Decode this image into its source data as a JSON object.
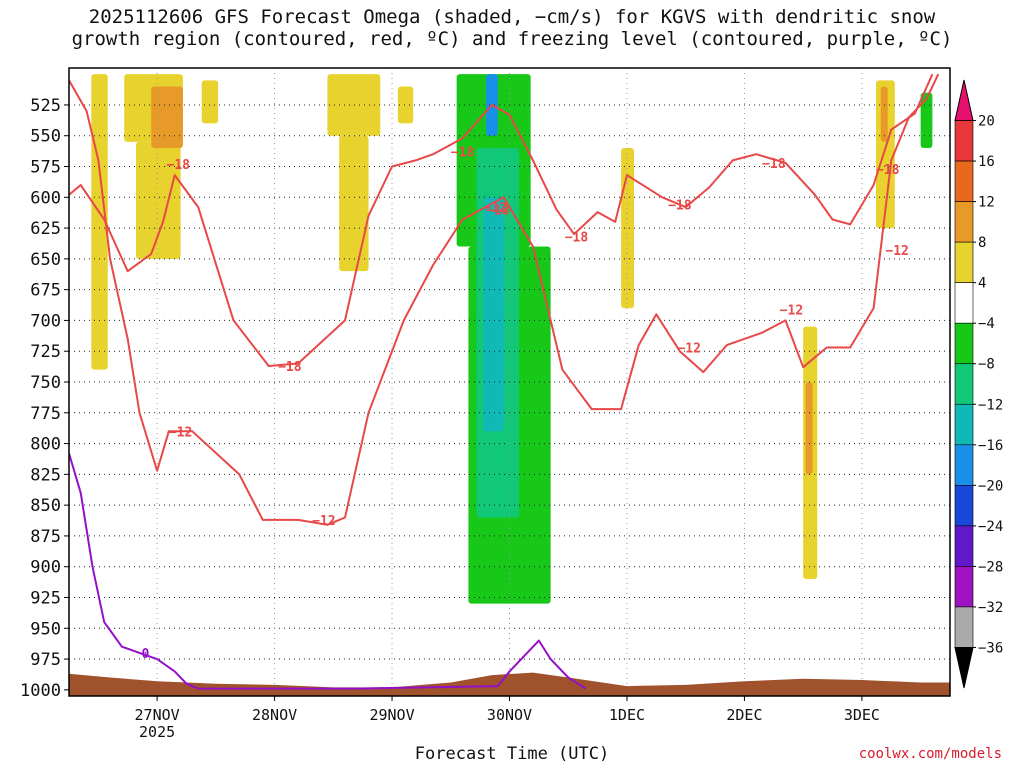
{
  "title": {
    "line1": "2025112606 GFS Forecast Omega (shaded, −cm/s) for KGVS with dendritic snow",
    "line2": "growth region (contoured, red, ºC) and freezing level (contoured, purple, ºC)"
  },
  "xlabel": "Forecast Time (UTC)",
  "credit": "coolwx.com/models",
  "chart_data": {
    "type": "heatmap",
    "x_axis": {
      "range": [
        26.25,
        33.75
      ],
      "ticks": [
        {
          "value": 27,
          "label": "27NOV",
          "sublabel": "2025"
        },
        {
          "value": 28,
          "label": "28NOV",
          "sublabel": ""
        },
        {
          "value": 29,
          "label": "29NOV",
          "sublabel": ""
        },
        {
          "value": 30,
          "label": "30NOV",
          "sublabel": ""
        },
        {
          "value": 31,
          "label": "1DEC",
          "sublabel": ""
        },
        {
          "value": 32,
          "label": "2DEC",
          "sublabel": ""
        },
        {
          "value": 33,
          "label": "3DEC",
          "sublabel": ""
        }
      ]
    },
    "y_axis": {
      "range": [
        1005,
        495
      ],
      "ticks": [
        525,
        550,
        575,
        600,
        625,
        650,
        675,
        700,
        725,
        750,
        775,
        800,
        825,
        850,
        875,
        900,
        925,
        950,
        975,
        1000
      ]
    },
    "grid": "dotted",
    "colorbar": {
      "labels": [
        "20",
        "16",
        "12",
        "8",
        "4",
        "−4",
        "−8",
        "−12",
        "−16",
        "−20",
        "−24",
        "−28",
        "−32",
        "−36"
      ],
      "colors": [
        "#e8106e",
        "#e8373a",
        "#e8691e",
        "#e89a28",
        "#e8d22e",
        "#ffffff",
        "#18c818",
        "#10c878",
        "#10b8b8",
        "#1890e8",
        "#1848d8",
        "#6018c8",
        "#9e12c2",
        "#aaaaaa",
        "#000000"
      ]
    },
    "shaded_regions": [
      {
        "color": "#e8d22e",
        "x": [
          26.44,
          26.58
        ],
        "p": [
          500,
          740
        ]
      },
      {
        "color": "#e8d22e",
        "x": [
          26.72,
          27.22
        ],
        "p": [
          500,
          555
        ]
      },
      {
        "color": "#e8d22e",
        "x": [
          26.82,
          27.2
        ],
        "p": [
          555,
          650
        ]
      },
      {
        "color": "#e89a28",
        "x": [
          26.95,
          27.22
        ],
        "p": [
          510,
          560
        ]
      },
      {
        "color": "#e8d22e",
        "x": [
          27.38,
          27.52
        ],
        "p": [
          505,
          540
        ]
      },
      {
        "color": "#e8d22e",
        "x": [
          28.45,
          28.9
        ],
        "p": [
          500,
          550
        ]
      },
      {
        "color": "#e8d22e",
        "x": [
          28.55,
          28.8
        ],
        "p": [
          550,
          660
        ]
      },
      {
        "color": "#e8d22e",
        "x": [
          29.05,
          29.18
        ],
        "p": [
          510,
          540
        ]
      },
      {
        "color": "#18c818",
        "x": [
          29.55,
          30.18
        ],
        "p": [
          500,
          640
        ]
      },
      {
        "color": "#18c818",
        "x": [
          29.65,
          30.35
        ],
        "p": [
          640,
          930
        ]
      },
      {
        "color": "#10c878",
        "x": [
          29.72,
          30.08
        ],
        "p": [
          560,
          860
        ]
      },
      {
        "color": "#10b8b8",
        "x": [
          29.78,
          29.95
        ],
        "p": [
          600,
          790
        ]
      },
      {
        "color": "#1890e8",
        "x": [
          29.8,
          29.9
        ],
        "p": [
          500,
          550
        ]
      },
      {
        "color": "#e8d22e",
        "x": [
          30.95,
          31.06
        ],
        "p": [
          560,
          690
        ]
      },
      {
        "color": "#e8d22e",
        "x": [
          32.5,
          32.62
        ],
        "p": [
          705,
          910
        ]
      },
      {
        "color": "#e89a28",
        "x": [
          32.52,
          32.58
        ],
        "p": [
          750,
          825
        ]
      },
      {
        "color": "#e8d22e",
        "x": [
          33.12,
          33.28
        ],
        "p": [
          505,
          625
        ]
      },
      {
        "color": "#e89a28",
        "x": [
          33.16,
          33.22
        ],
        "p": [
          510,
          555
        ]
      },
      {
        "color": "#18c818",
        "x": [
          33.5,
          33.6
        ],
        "p": [
          515,
          560
        ]
      }
    ],
    "ground": {
      "color": "#a0522d",
      "profile": [
        [
          26.25,
          987
        ],
        [
          26.6,
          990
        ],
        [
          27.0,
          993
        ],
        [
          27.5,
          995
        ],
        [
          28.0,
          996
        ],
        [
          28.5,
          998
        ],
        [
          29.0,
          998
        ],
        [
          29.5,
          994
        ],
        [
          29.85,
          988
        ],
        [
          30.2,
          986
        ],
        [
          30.5,
          990
        ],
        [
          31.0,
          997
        ],
        [
          31.5,
          996
        ],
        [
          32.0,
          993
        ],
        [
          32.5,
          991
        ],
        [
          33.0,
          992
        ],
        [
          33.5,
          994
        ],
        [
          33.75,
          994
        ]
      ]
    },
    "series": [
      {
        "name": "-18",
        "color": "#e84848",
        "labels": [
          {
            "text": "−18",
            "x": 27.18,
            "p": 573
          },
          {
            "text": "−18",
            "x": 28.13,
            "p": 737
          },
          {
            "text": "−18",
            "x": 29.6,
            "p": 563
          },
          {
            "text": "−18",
            "x": 29.9,
            "p": 610
          },
          {
            "text": "−18",
            "x": 30.57,
            "p": 632
          },
          {
            "text": "−18",
            "x": 31.45,
            "p": 606
          },
          {
            "text": "−18",
            "x": 32.25,
            "p": 572
          },
          {
            "text": "−18",
            "x": 33.22,
            "p": 577
          }
        ],
        "points": [
          [
            26.25,
            598
          ],
          [
            26.35,
            590
          ],
          [
            26.55,
            618
          ],
          [
            26.75,
            660
          ],
          [
            26.95,
            646
          ],
          [
            27.05,
            620
          ],
          [
            27.15,
            582
          ],
          [
            27.35,
            608
          ],
          [
            27.65,
            700
          ],
          [
            27.95,
            737
          ],
          [
            28.2,
            735
          ],
          [
            28.6,
            700
          ],
          [
            28.8,
            615
          ],
          [
            29.0,
            575
          ],
          [
            29.2,
            570
          ],
          [
            29.35,
            565
          ],
          [
            29.6,
            552
          ],
          [
            29.85,
            525
          ],
          [
            30.0,
            533
          ],
          [
            30.2,
            570
          ],
          [
            30.4,
            610
          ],
          [
            30.55,
            630
          ],
          [
            30.75,
            612
          ],
          [
            30.9,
            620
          ],
          [
            31.0,
            582
          ],
          [
            31.3,
            600
          ],
          [
            31.5,
            608
          ],
          [
            31.7,
            592
          ],
          [
            31.9,
            570
          ],
          [
            32.1,
            565
          ],
          [
            32.35,
            572
          ],
          [
            32.6,
            598
          ],
          [
            32.75,
            618
          ],
          [
            32.9,
            622
          ],
          [
            33.1,
            590
          ],
          [
            33.25,
            545
          ],
          [
            33.45,
            532
          ],
          [
            33.6,
            500
          ]
        ]
      },
      {
        "name": "-12",
        "color": "#e84848",
        "labels": [
          {
            "text": "−12",
            "x": 27.2,
            "p": 790
          },
          {
            "text": "−12",
            "x": 28.42,
            "p": 862
          },
          {
            "text": "−12",
            "x": 29.88,
            "p": 608
          },
          {
            "text": "−12",
            "x": 31.53,
            "p": 722
          },
          {
            "text": "−12",
            "x": 32.4,
            "p": 691
          },
          {
            "text": "−12",
            "x": 33.3,
            "p": 643
          }
        ],
        "points": [
          [
            26.25,
            505
          ],
          [
            26.4,
            530
          ],
          [
            26.5,
            570
          ],
          [
            26.6,
            650
          ],
          [
            26.75,
            715
          ],
          [
            26.85,
            775
          ],
          [
            27.0,
            822
          ],
          [
            27.1,
            790
          ],
          [
            27.3,
            790
          ],
          [
            27.7,
            825
          ],
          [
            27.9,
            862
          ],
          [
            28.2,
            862
          ],
          [
            28.45,
            866
          ],
          [
            28.6,
            860
          ],
          [
            28.8,
            775
          ],
          [
            29.1,
            700
          ],
          [
            29.35,
            655
          ],
          [
            29.6,
            618
          ],
          [
            29.95,
            600
          ],
          [
            30.2,
            640
          ],
          [
            30.45,
            740
          ],
          [
            30.7,
            772
          ],
          [
            30.95,
            772
          ],
          [
            31.1,
            720
          ],
          [
            31.25,
            695
          ],
          [
            31.45,
            725
          ],
          [
            31.65,
            742
          ],
          [
            31.85,
            720
          ],
          [
            32.15,
            710
          ],
          [
            32.35,
            700
          ],
          [
            32.5,
            738
          ],
          [
            32.7,
            722
          ],
          [
            32.9,
            722
          ],
          [
            33.1,
            690
          ],
          [
            33.25,
            570
          ],
          [
            33.4,
            535
          ],
          [
            33.55,
            520
          ],
          [
            33.65,
            500
          ]
        ]
      },
      {
        "name": "0",
        "color": "#9410c8",
        "labels": [
          {
            "text": "0",
            "x": 26.9,
            "p": 970
          }
        ],
        "points": [
          [
            26.25,
            808
          ],
          [
            26.35,
            840
          ],
          [
            26.45,
            900
          ],
          [
            26.55,
            945
          ],
          [
            26.7,
            965
          ],
          [
            26.85,
            970
          ],
          [
            27.0,
            975
          ],
          [
            27.15,
            985
          ],
          [
            27.25,
            995
          ],
          [
            27.35,
            999
          ],
          [
            28.7,
            999
          ],
          [
            29.9,
            997
          ],
          [
            30.0,
            985
          ],
          [
            30.15,
            970
          ],
          [
            30.25,
            960
          ],
          [
            30.35,
            975
          ],
          [
            30.5,
            990
          ],
          [
            30.65,
            999
          ]
        ]
      }
    ]
  }
}
